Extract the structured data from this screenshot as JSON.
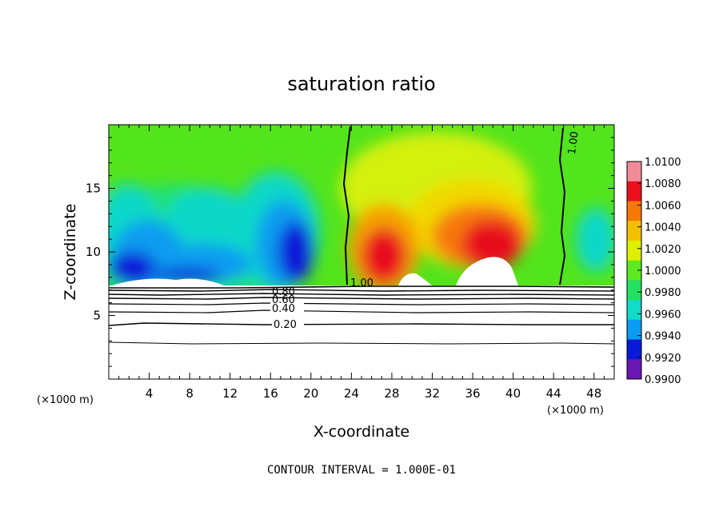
{
  "chart_data": {
    "type": "heatmap",
    "title": "saturation ratio",
    "xlabel": "X-coordinate",
    "ylabel": "Z-coordinate",
    "x_units": "(×1000 m)",
    "xlim": [
      0,
      50
    ],
    "ylim": [
      0,
      20
    ],
    "x_ticks": [
      4,
      8,
      12,
      16,
      20,
      24,
      28,
      32,
      36,
      40,
      44,
      48
    ],
    "y_ticks": [
      5,
      10,
      15
    ],
    "footer": "CONTOUR INTERVAL = 1.000E-01",
    "colorbar": {
      "min": 0.99,
      "max": 1.01,
      "step": 0.002,
      "labels": [
        "1.0100",
        "1.0080",
        "1.0060",
        "1.0040",
        "1.0020",
        "1.0000",
        "0.9980",
        "0.9960",
        "0.9940",
        "0.9920",
        "0.9900"
      ],
      "colors": [
        "#f08c9a",
        "#e8101c",
        "#f67808",
        "#f2c000",
        "#dcf000",
        "#5ee820",
        "#22e060",
        "#10dcc8",
        "#0a9cf0",
        "#0a18d8",
        "#6818b0"
      ]
    },
    "contour_labels": [
      {
        "text": "0.20",
        "value": 0.2
      },
      {
        "text": "0.40",
        "value": 0.4
      },
      {
        "text": "0.60",
        "value": 0.6
      },
      {
        "text": "0.80",
        "value": 0.8
      },
      {
        "text": "1.00",
        "value": 1.0
      },
      {
        "text": "1.00",
        "value": 1.0
      }
    ]
  }
}
